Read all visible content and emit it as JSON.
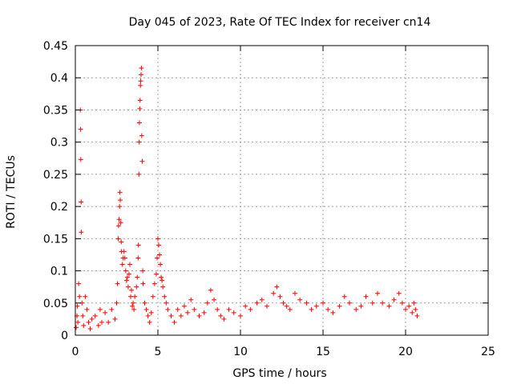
{
  "chart_data": {
    "type": "scatter",
    "title": "Day 045 of 2023, Rate Of TEC Index for receiver cn14",
    "xlabel": "GPS time / hours",
    "ylabel": "ROTI / TECUs",
    "xlim": [
      0,
      25
    ],
    "ylim": [
      0,
      0.45
    ],
    "x_ticks": [
      0,
      5,
      10,
      15,
      20,
      25
    ],
    "x_tick_labels": [
      "0",
      "5",
      "10",
      "15",
      "20",
      "25"
    ],
    "y_ticks": [
      0,
      0.05,
      0.1,
      0.15,
      0.2,
      0.25,
      0.3,
      0.35,
      0.4,
      0.45
    ],
    "y_tick_labels": [
      "0",
      "0.05",
      "0.1",
      "0.15",
      "0.2",
      "0.25",
      "0.3",
      "0.35",
      "0.4",
      "0.45"
    ],
    "grid": true,
    "legend": "none",
    "marker": "+",
    "color": "#ff0000",
    "series": [
      {
        "values": [
          [
            0.05,
            0.012
          ],
          [
            0.1,
            0.03
          ],
          [
            0.12,
            0.045
          ],
          [
            0.15,
            0.02
          ],
          [
            0.2,
            0.08
          ],
          [
            0.25,
            0.06
          ],
          [
            0.3,
            0.35
          ],
          [
            0.32,
            0.32
          ],
          [
            0.33,
            0.273
          ],
          [
            0.35,
            0.207
          ],
          [
            0.36,
            0.16
          ],
          [
            0.4,
            0.05
          ],
          [
            0.45,
            0.03
          ],
          [
            0.5,
            0.015
          ],
          [
            0.6,
            0.06
          ],
          [
            0.7,
            0.04
          ],
          [
            0.8,
            0.02
          ],
          [
            0.9,
            0.01
          ],
          [
            1.0,
            0.025
          ],
          [
            1.2,
            0.03
          ],
          [
            1.4,
            0.015
          ],
          [
            1.5,
            0.04
          ],
          [
            1.6,
            0.02
          ],
          [
            1.8,
            0.035
          ],
          [
            2.0,
            0.02
          ],
          [
            2.2,
            0.04
          ],
          [
            2.4,
            0.025
          ],
          [
            2.5,
            0.05
          ],
          [
            2.55,
            0.08
          ],
          [
            2.6,
            0.15
          ],
          [
            2.62,
            0.17
          ],
          [
            2.65,
            0.18
          ],
          [
            2.68,
            0.2
          ],
          [
            2.7,
            0.222
          ],
          [
            2.72,
            0.21
          ],
          [
            2.75,
            0.175
          ],
          [
            2.78,
            0.145
          ],
          [
            2.8,
            0.13
          ],
          [
            2.85,
            0.11
          ],
          [
            2.9,
            0.12
          ],
          [
            2.95,
            0.13
          ],
          [
            3.0,
            0.12
          ],
          [
            3.05,
            0.1
          ],
          [
            3.1,
            0.085
          ],
          [
            3.15,
            0.09
          ],
          [
            3.2,
            0.075
          ],
          [
            3.25,
            0.095
          ],
          [
            3.3,
            0.11
          ],
          [
            3.35,
            0.06
          ],
          [
            3.4,
            0.07
          ],
          [
            3.45,
            0.045
          ],
          [
            3.5,
            0.05
          ],
          [
            3.55,
            0.04
          ],
          [
            3.6,
            0.06
          ],
          [
            3.7,
            0.075
          ],
          [
            3.75,
            0.09
          ],
          [
            3.8,
            0.12
          ],
          [
            3.82,
            0.14
          ],
          [
            3.85,
            0.25
          ],
          [
            3.87,
            0.3
          ],
          [
            3.88,
            0.33
          ],
          [
            3.9,
            0.352
          ],
          [
            3.92,
            0.365
          ],
          [
            3.94,
            0.388
          ],
          [
            3.96,
            0.395
          ],
          [
            3.98,
            0.405
          ],
          [
            4.0,
            0.415
          ],
          [
            4.02,
            0.31
          ],
          [
            4.05,
            0.27
          ],
          [
            4.08,
            0.1
          ],
          [
            4.1,
            0.08
          ],
          [
            4.2,
            0.05
          ],
          [
            4.3,
            0.04
          ],
          [
            4.4,
            0.03
          ],
          [
            4.5,
            0.02
          ],
          [
            4.6,
            0.035
          ],
          [
            4.7,
            0.06
          ],
          [
            4.8,
            0.08
          ],
          [
            4.9,
            0.095
          ],
          [
            4.95,
            0.12
          ],
          [
            5.0,
            0.15
          ],
          [
            5.05,
            0.14
          ],
          [
            5.1,
            0.125
          ],
          [
            5.15,
            0.11
          ],
          [
            5.2,
            0.09
          ],
          [
            5.25,
            0.085
          ],
          [
            5.3,
            0.075
          ],
          [
            5.4,
            0.06
          ],
          [
            5.5,
            0.05
          ],
          [
            5.6,
            0.04
          ],
          [
            5.8,
            0.03
          ],
          [
            6.0,
            0.02
          ],
          [
            6.2,
            0.04
          ],
          [
            6.4,
            0.03
          ],
          [
            6.6,
            0.045
          ],
          [
            6.8,
            0.035
          ],
          [
            7.0,
            0.055
          ],
          [
            7.2,
            0.04
          ],
          [
            7.5,
            0.03
          ],
          [
            7.8,
            0.035
          ],
          [
            8.0,
            0.05
          ],
          [
            8.2,
            0.07
          ],
          [
            8.4,
            0.055
          ],
          [
            8.6,
            0.04
          ],
          [
            8.8,
            0.03
          ],
          [
            9.0,
            0.025
          ],
          [
            9.3,
            0.04
          ],
          [
            9.6,
            0.035
          ],
          [
            10.0,
            0.03
          ],
          [
            10.3,
            0.045
          ],
          [
            10.6,
            0.04
          ],
          [
            11.0,
            0.05
          ],
          [
            11.3,
            0.055
          ],
          [
            11.6,
            0.045
          ],
          [
            12.0,
            0.065
          ],
          [
            12.2,
            0.075
          ],
          [
            12.4,
            0.06
          ],
          [
            12.6,
            0.05
          ],
          [
            12.8,
            0.045
          ],
          [
            13.0,
            0.04
          ],
          [
            13.3,
            0.065
          ],
          [
            13.6,
            0.055
          ],
          [
            14.0,
            0.05
          ],
          [
            14.3,
            0.04
          ],
          [
            14.6,
            0.045
          ],
          [
            15.0,
            0.05
          ],
          [
            15.3,
            0.04
          ],
          [
            15.6,
            0.035
          ],
          [
            16.0,
            0.045
          ],
          [
            16.3,
            0.06
          ],
          [
            16.6,
            0.05
          ],
          [
            17.0,
            0.04
          ],
          [
            17.3,
            0.045
          ],
          [
            17.6,
            0.06
          ],
          [
            18.0,
            0.05
          ],
          [
            18.3,
            0.065
          ],
          [
            18.6,
            0.05
          ],
          [
            19.0,
            0.045
          ],
          [
            19.3,
            0.055
          ],
          [
            19.6,
            0.065
          ],
          [
            19.8,
            0.05
          ],
          [
            20.0,
            0.04
          ],
          [
            20.2,
            0.045
          ],
          [
            20.4,
            0.035
          ],
          [
            20.5,
            0.05
          ],
          [
            20.6,
            0.04
          ],
          [
            20.7,
            0.03
          ]
        ]
      }
    ]
  }
}
